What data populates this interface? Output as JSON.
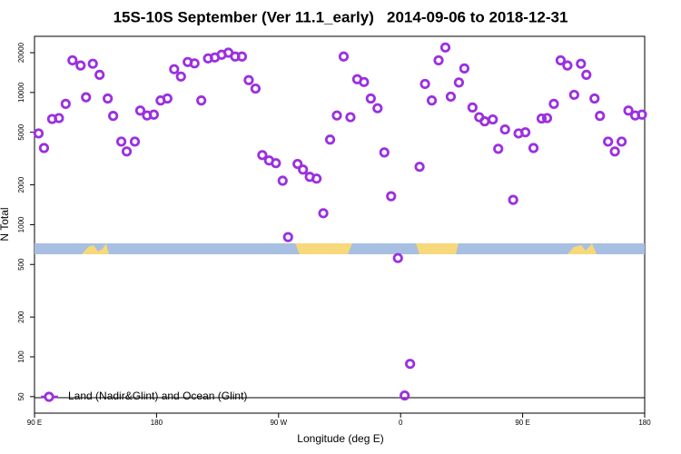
{
  "chart_data": {
    "type": "scatter",
    "title": "15S-10S September (Ver 11.1_early)   2014-09-06 to 2018-12-31",
    "x_label": "Longitude (deg E)",
    "y_label": "N Total",
    "log_y": true,
    "xlim": [
      90,
      540
    ],
    "xticks": [
      {
        "value": 90,
        "label": "90 E"
      },
      180,
      {
        "value": 270,
        "label": "90 W"
      },
      {
        "value": 360,
        "label": "0"
      },
      {
        "value": 450,
        "label": "90 E"
      },
      {
        "value": 540,
        "label": "180"
      }
    ],
    "ylim": [
      37.5,
      26600
    ],
    "yticks": [
      50,
      100,
      200,
      500,
      1000,
      2000,
      5000,
      10000,
      20000
    ],
    "legend": "bottom-left",
    "series": [
      {
        "name": "Land (Nadir&Glint) and Ocean (Glint)",
        "color": "#9b30e0",
        "x": [
          93,
          97,
          103,
          108,
          113,
          118,
          124,
          128,
          133,
          138,
          144,
          148,
          154,
          158,
          164,
          168,
          173,
          178,
          183,
          188,
          193,
          198,
          203,
          208,
          213,
          218,
          223,
          228,
          233,
          238,
          243,
          248,
          253,
          258,
          263,
          268,
          273,
          277,
          284,
          288,
          293,
          298,
          303,
          308,
          313,
          318,
          323,
          328,
          333,
          338,
          343,
          348,
          353,
          358,
          363,
          367,
          374,
          378,
          383,
          388,
          393,
          397,
          403,
          407,
          413,
          418,
          422,
          428,
          432,
          437,
          443,
          447,
          452,
          458,
          464,
          468,
          473,
          478,
          483,
          488,
          493,
          497,
          503,
          507,
          513,
          518,
          523,
          528,
          533,
          538
        ],
        "values": [
          4900,
          3800,
          6300,
          6400,
          8200,
          17500,
          16000,
          9200,
          16500,
          13600,
          9000,
          6650,
          4250,
          3580,
          4250,
          7300,
          6700,
          6800,
          8700,
          9000,
          15000,
          13200,
          17000,
          16600,
          8700,
          18100,
          18400,
          19300,
          20000,
          18700,
          18700,
          12400,
          10700,
          3360,
          3060,
          2920,
          2150,
          805,
          2880,
          2610,
          2300,
          2230,
          1220,
          4400,
          6700,
          18700,
          6500,
          12600,
          12000,
          9000,
          7600,
          3520,
          1640,
          559,
          51,
          88.5,
          2740,
          11600,
          8700,
          17500,
          21900,
          9300,
          11900,
          15200,
          7700,
          6500,
          6050,
          6250,
          3750,
          5250,
          1540,
          4900,
          5000,
          3800,
          6350,
          6400,
          8200,
          17500,
          16000,
          9600,
          16500,
          13600,
          9000,
          6650,
          4250,
          3580,
          4250,
          7300,
          6700,
          6800
        ]
      }
    ]
  }
}
